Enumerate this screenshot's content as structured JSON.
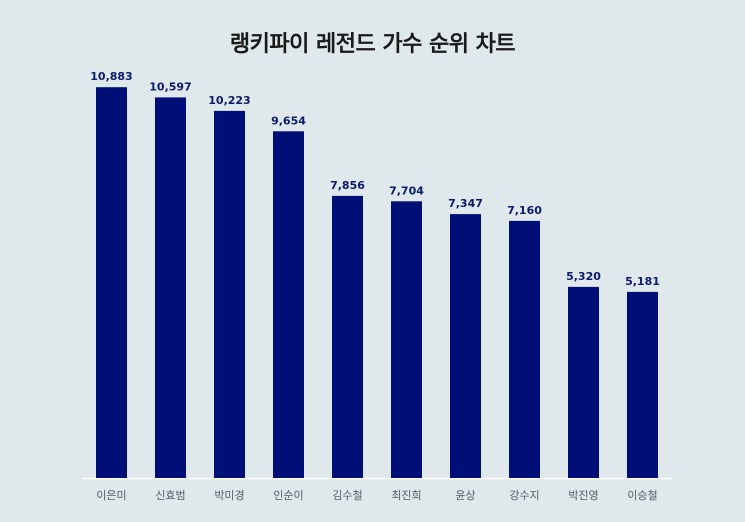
{
  "chart_data": {
    "type": "bar",
    "title": "랭키파이 레전드 가수 순위 차트",
    "xlabel": "",
    "ylabel": "",
    "categories": [
      "이은미",
      "신효범",
      "박미경",
      "인순이",
      "김수철",
      "최진희",
      "윤상",
      "강수지",
      "박진영",
      "이승철"
    ],
    "values": [
      10883,
      10597,
      10223,
      9654,
      7856,
      7704,
      7347,
      7160,
      5320,
      5181
    ],
    "value_labels": [
      "10,883",
      "10,597",
      "10,223",
      "9,654",
      "7,856",
      "7,704",
      "7,347",
      "7,160",
      "5,320",
      "5,181"
    ],
    "ylim": [
      0,
      11500
    ],
    "grid": false,
    "bar_color": "#000f78",
    "label_color": "#0b1a6b",
    "background": "#dfe8ea"
  }
}
